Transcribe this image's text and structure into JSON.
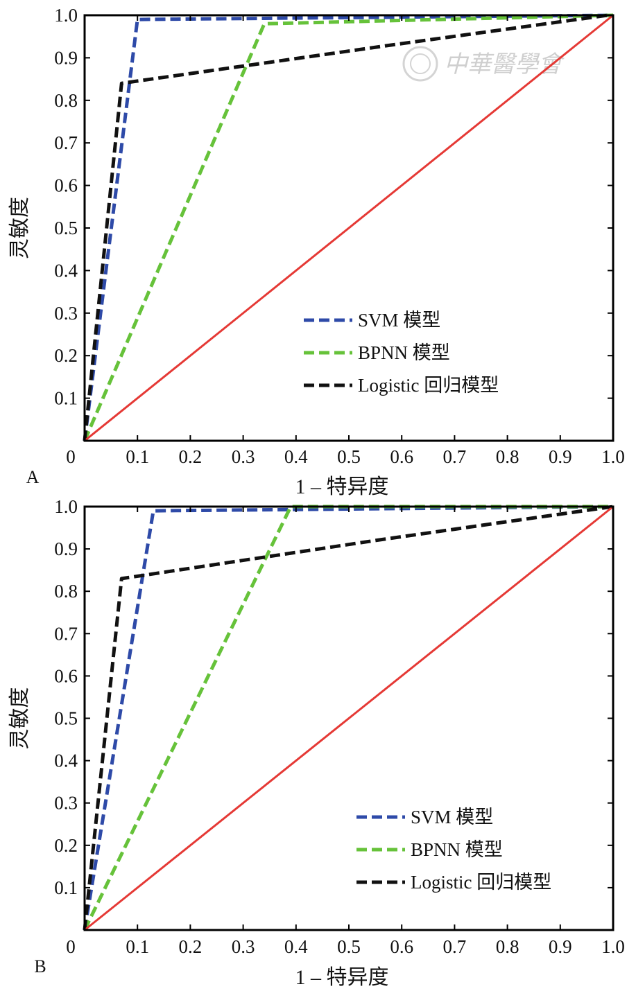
{
  "watermark_text": "中華醫學會",
  "chart_data": [
    {
      "type": "line",
      "panel_label": "A",
      "xlabel": "1 – 特异度",
      "ylabel": "灵敏度",
      "xlim": [
        0,
        1.0
      ],
      "ylim": [
        0,
        1.0
      ],
      "x_ticks": [
        "0",
        "0.1",
        "0.2",
        "0.3",
        "0.4",
        "0.5",
        "0.6",
        "0.7",
        "0.8",
        "0.9",
        "1.0"
      ],
      "y_ticks": [
        "0.1",
        "0.2",
        "0.3",
        "0.4",
        "0.5",
        "0.6",
        "0.7",
        "0.8",
        "0.9",
        "1.0"
      ],
      "legend_position": "lower-right",
      "series": [
        {
          "name": "SVM 模型",
          "color": "#2e4aa8",
          "dash": true,
          "points": [
            [
              0,
              0
            ],
            [
              0.1,
              0.99
            ],
            [
              1.0,
              1.0
            ]
          ]
        },
        {
          "name": "BPNN 模型",
          "color": "#66c23a",
          "dash": true,
          "points": [
            [
              0,
              0
            ],
            [
              0.34,
              0.98
            ],
            [
              1.0,
              1.0
            ]
          ]
        },
        {
          "name": "Logistic 回归模型",
          "color": "#111111",
          "dash": true,
          "points": [
            [
              0,
              0
            ],
            [
              0.07,
              0.84
            ],
            [
              0.58,
              0.93
            ],
            [
              0.99,
              1.0
            ]
          ]
        },
        {
          "name": "",
          "color": "#e53935",
          "dash": false,
          "points": [
            [
              0,
              0
            ],
            [
              1.0,
              1.0
            ]
          ]
        }
      ]
    },
    {
      "type": "line",
      "panel_label": "B",
      "xlabel": "1 – 特异度",
      "ylabel": "灵敏度",
      "xlim": [
        0,
        1.0
      ],
      "ylim": [
        0,
        1.0
      ],
      "x_ticks": [
        "0",
        "0.1",
        "0.2",
        "0.3",
        "0.4",
        "0.5",
        "0.6",
        "0.7",
        "0.8",
        "0.9",
        "1.0"
      ],
      "y_ticks": [
        "0.1",
        "0.2",
        "0.3",
        "0.4",
        "0.5",
        "0.6",
        "0.7",
        "0.8",
        "0.9",
        "1.0"
      ],
      "legend_position": "lower-right",
      "series": [
        {
          "name": "SVM 模型",
          "color": "#2e4aa8",
          "dash": true,
          "points": [
            [
              0,
              0
            ],
            [
              0.13,
              0.99
            ],
            [
              1.0,
              1.0
            ]
          ]
        },
        {
          "name": "BPNN 模型",
          "color": "#66c23a",
          "dash": true,
          "points": [
            [
              0,
              0
            ],
            [
              0.39,
              1.0
            ],
            [
              1.0,
              1.0
            ]
          ]
        },
        {
          "name": "Logistic 回归模型",
          "color": "#111111",
          "dash": true,
          "points": [
            [
              0,
              0
            ],
            [
              0.07,
              0.83
            ],
            [
              0.55,
              0.92
            ],
            [
              1.0,
              1.0
            ]
          ]
        },
        {
          "name": "",
          "color": "#e53935",
          "dash": false,
          "points": [
            [
              0,
              0
            ],
            [
              1.0,
              1.0
            ]
          ]
        }
      ]
    }
  ]
}
